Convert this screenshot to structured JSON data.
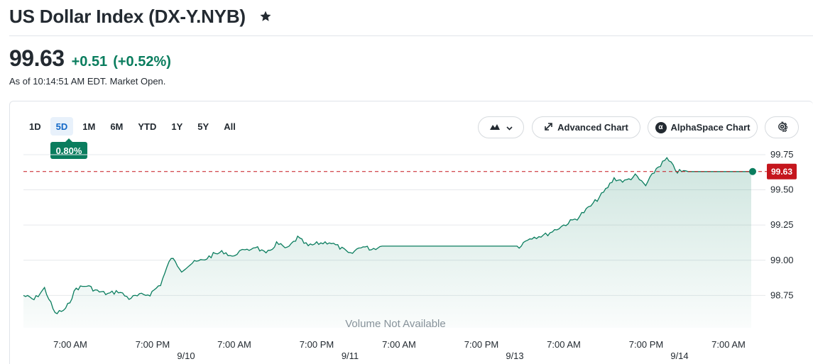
{
  "header": {
    "title": "US Dollar Index (DX-Y.NYB)"
  },
  "quote": {
    "price": "99.63",
    "change": "+0.51",
    "change_percent": "(+0.52%)",
    "as_of": "As of 10:14:51 AM EDT. Market Open."
  },
  "range_tabs": [
    "1D",
    "5D",
    "1M",
    "6M",
    "YTD",
    "1Y",
    "5Y",
    "All"
  ],
  "selected_range": "5D",
  "range_badge": "0.80%",
  "toolbar": {
    "chart_type_icon": "mountain-chart-icon",
    "advanced_chart_label": "Advanced Chart",
    "alphaspace_chart_label": "AlphaSpace Chart",
    "alphaspace_logo": "α",
    "settings_icon": "gear-icon"
  },
  "colors": {
    "positive": "#0a7d5e",
    "line": "#0a7d5e",
    "current_price_marker": "#c5161d",
    "selected_tab": "#1469c7"
  },
  "chart_data": {
    "type": "area",
    "volume_note": "Volume Not Available",
    "current_price_label": "99.63",
    "y_ticks": [
      "99.75",
      "99.50",
      "99.25",
      "99.00",
      "98.75"
    ],
    "ylim": [
      98.52,
      99.78
    ],
    "x_ticks": [
      {
        "time": "7:00 AM",
        "date": ""
      },
      {
        "time": "7:00 PM",
        "date": "9/10"
      },
      {
        "time": "7:00 AM",
        "date": ""
      },
      {
        "time": "7:00 PM",
        "date": "9/11"
      },
      {
        "time": "7:00 AM",
        "date": ""
      },
      {
        "time": "7:00 PM",
        "date": "9/13"
      },
      {
        "time": "7:00 AM",
        "date": ""
      },
      {
        "time": "7:00 PM",
        "date": "9/14"
      },
      {
        "time": "7:00 AM",
        "date": ""
      }
    ],
    "series": [
      {
        "x": [
          "9/9 4:00 PM",
          "9/9 6:00 PM",
          "9/9 8:00 PM",
          "9/9 10:00 PM",
          "9/10 12:00 AM",
          "9/10 2:00 AM",
          "9/10 4:00 AM",
          "9/10 6:00 AM",
          "9/10 8:00 AM",
          "9/10 10:00 AM",
          "9/10 12:00 PM",
          "9/10 2:00 PM",
          "9/10 4:00 PM",
          "9/10 6:00 PM",
          "9/10 8:00 PM",
          "9/10 10:00 PM",
          "9/11 12:00 AM",
          "9/11 2:00 AM",
          "9/11 4:00 AM",
          "9/11 6:00 AM",
          "9/11 8:00 AM",
          "9/11 9:00 AM",
          "9/11 10:00 AM",
          "9/11 12:00 PM",
          "9/11 2:00 PM",
          "9/11 4:00 PM",
          "9/11 6:00 PM",
          "9/11 8:00 PM",
          "9/11 10:00 PM",
          "9/12 12:00 AM",
          "9/12 2:00 AM",
          "9/12 4:00 AM",
          "9/12 6:00 AM",
          "9/12 8:00 AM",
          "9/12 10:00 AM",
          "9/12 12:00 PM",
          "9/12 2:00 PM",
          "9/12 4:00 PM",
          "9/12 6:00 PM",
          "9/12 8:00 PM",
          "9/12 10:00 PM",
          "9/13 12:00 AM",
          "9/13 2:00 AM",
          "9/13 4:00 AM",
          "9/13 6:00 AM",
          "9/13 8:00 AM",
          "9/13 10:00 AM",
          "9/13 12:00 PM",
          "9/13 2:00 PM",
          "9/13 4:00 PM",
          "9/13 7:00 PM",
          "9/13 10:00 PM",
          "9/14 1:00 AM",
          "9/14 4:00 AM",
          "9/14 6:00 AM",
          "9/14 8:00 AM",
          "9/14 10:00 AM",
          "9/14 12:00 PM",
          "9/14 2:00 PM",
          "9/14 4:00 PM",
          "9/14 6:00 PM",
          "9/14 8:00 PM",
          "9/14 10:00 PM",
          "9/15 12:00 AM",
          "9/15 2:00 AM",
          "9/15 4:00 AM",
          "9/15 6:00 AM",
          "9/15 8:00 AM",
          "9/15 9:00 AM",
          "9/15 10:00 AM"
        ],
        "values": [
          98.75,
          98.72,
          98.8,
          98.62,
          98.65,
          98.8,
          98.82,
          98.78,
          98.76,
          98.78,
          98.73,
          98.75,
          98.76,
          98.83,
          99.02,
          98.93,
          98.98,
          99.0,
          99.04,
          99.06,
          99.02,
          99.08,
          99.06,
          99.1,
          99.04,
          99.12,
          99.08,
          99.16,
          99.1,
          99.12,
          99.13,
          99.09,
          99.04,
          99.1,
          99.08,
          99.1,
          99.1,
          99.1,
          99.1,
          99.1,
          99.1,
          99.1,
          99.1,
          99.1,
          99.1,
          99.1,
          99.1,
          99.1,
          99.1,
          99.16,
          99.18,
          99.24,
          99.3,
          99.4,
          99.48,
          99.58,
          99.56,
          99.6,
          99.53,
          99.65,
          99.72,
          99.63,
          99.63,
          99.63,
          99.63,
          99.63,
          99.63,
          99.63,
          99.63,
          99.63
        ]
      }
    ],
    "grid": true,
    "legend": "none"
  }
}
